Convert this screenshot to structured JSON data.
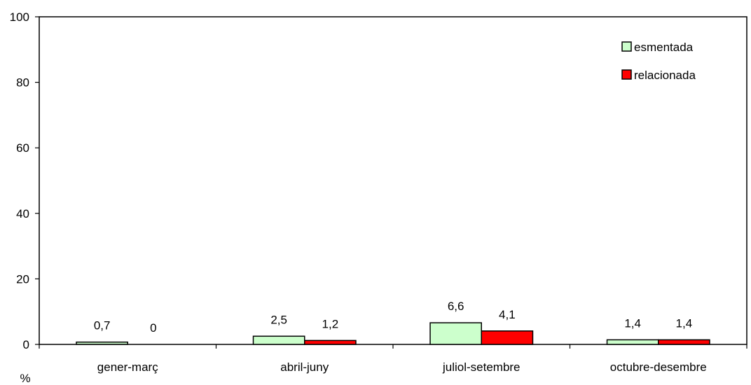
{
  "chart_data": {
    "type": "bar",
    "title": "",
    "xlabel": "",
    "ylabel": "%",
    "ylim": [
      0,
      100
    ],
    "yticks": [
      "0",
      "20",
      "40",
      "60",
      "80",
      "100"
    ],
    "categories": [
      "gener-març",
      "abril-juny",
      "juliol-setembre",
      "octubre-desembre"
    ],
    "series": [
      {
        "name": "esmentada",
        "color": "#ccffcc",
        "values": [
          0.7,
          2.5,
          6.6,
          1.4
        ],
        "labels": [
          "0,7",
          "2,5",
          "6,6",
          "1,4"
        ]
      },
      {
        "name": "relacionada",
        "color": "#ff0000",
        "values": [
          0,
          1.2,
          4.1,
          1.4
        ],
        "labels": [
          "0",
          "1,2",
          "4,1",
          "1,4"
        ]
      }
    ],
    "grid": false,
    "legend_position": "top-right"
  }
}
